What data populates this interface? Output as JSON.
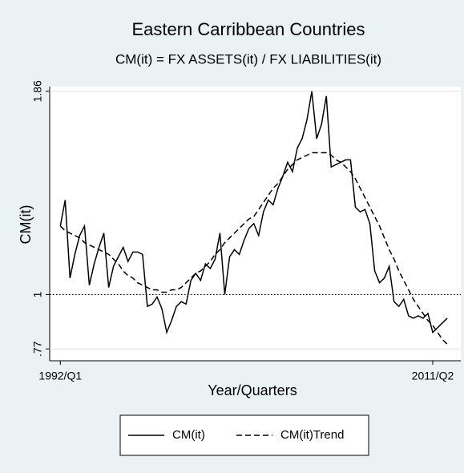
{
  "chart_data": {
    "type": "line",
    "title": "Eastern Carribbean Countries",
    "subtitle": "CM(it) = FX ASSETS(it) / FX LIABILITIES(it)",
    "x_label": "Year/Quarters",
    "y_label": "CM(it)",
    "x": [
      1992,
      1992.25,
      1992.5,
      1992.75,
      1993,
      1993.25,
      1993.5,
      1993.75,
      1994,
      1994.25,
      1994.5,
      1994.75,
      1995,
      1995.25,
      1995.5,
      1995.75,
      1996,
      1996.25,
      1996.5,
      1996.75,
      1997,
      1997.25,
      1997.5,
      1997.75,
      1998,
      1998.25,
      1998.5,
      1998.75,
      1999,
      1999.25,
      1999.5,
      1999.75,
      2000,
      2000.25,
      2000.5,
      2000.75,
      2001,
      2001.25,
      2001.5,
      2001.75,
      2002,
      2002.25,
      2002.5,
      2002.75,
      2003,
      2003.25,
      2003.5,
      2003.75,
      2004,
      2004.25,
      2004.5,
      2004.75,
      2005,
      2005.25,
      2005.5,
      2005.75,
      2006,
      2006.25,
      2006.5,
      2006.75,
      2007,
      2007.25,
      2007.5,
      2007.75,
      2008,
      2008.25,
      2008.5,
      2008.75,
      2009,
      2009.25,
      2009.5,
      2009.75,
      2010,
      2010.25,
      2010.5,
      2010.75,
      2011,
      2011.25,
      2011.5,
      2011.75,
      2012
    ],
    "series": [
      {
        "name": "CM(it)",
        "color": "#000000",
        "dash": "solid",
        "values": [
          1.29,
          1.4,
          1.07,
          1.17,
          1.25,
          1.29,
          1.04,
          1.13,
          1.2,
          1.26,
          1.03,
          1.12,
          1.16,
          1.2,
          1.14,
          1.18,
          1.18,
          1.17,
          0.95,
          0.96,
          0.99,
          0.94,
          0.84,
          0.89,
          0.95,
          0.97,
          0.96,
          1.06,
          1.09,
          1.06,
          1.13,
          1.11,
          1.15,
          1.26,
          1.0,
          1.16,
          1.19,
          1.17,
          1.23,
          1.28,
          1.3,
          1.25,
          1.35,
          1.4,
          1.38,
          1.45,
          1.5,
          1.56,
          1.52,
          1.62,
          1.66,
          1.74,
          1.86,
          1.66,
          1.72,
          1.84,
          1.54,
          1.55,
          1.56,
          1.57,
          1.57,
          1.37,
          1.35,
          1.36,
          1.3,
          1.1,
          1.05,
          1.07,
          1.12,
          0.97,
          0.95,
          0.98,
          0.91,
          0.9,
          0.91,
          0.9,
          0.92,
          0.84,
          0.86,
          0.88,
          0.9
        ]
      },
      {
        "name": "CM(it)Trend",
        "color": "#000000",
        "dash": "dashed",
        "values": [
          1.29,
          1.27,
          1.26,
          1.25,
          1.24,
          1.22,
          1.21,
          1.2,
          1.19,
          1.18,
          1.17,
          1.15,
          1.13,
          1.1,
          1.08,
          1.07,
          1.05,
          1.04,
          1.03,
          1.02,
          1.02,
          1.01,
          1.01,
          1.02,
          1.02,
          1.03,
          1.05,
          1.07,
          1.09,
          1.1,
          1.12,
          1.14,
          1.17,
          1.19,
          1.22,
          1.24,
          1.26,
          1.28,
          1.3,
          1.32,
          1.33,
          1.36,
          1.39,
          1.42,
          1.45,
          1.47,
          1.5,
          1.53,
          1.55,
          1.57,
          1.58,
          1.59,
          1.6,
          1.6,
          1.6,
          1.6,
          1.59,
          1.57,
          1.56,
          1.54,
          1.52,
          1.49,
          1.45,
          1.41,
          1.37,
          1.33,
          1.29,
          1.24,
          1.19,
          1.15,
          1.1,
          1.06,
          1.02,
          0.98,
          0.95,
          0.92,
          0.89,
          0.87,
          0.84,
          0.81,
          0.79
        ]
      }
    ],
    "xlim": [
      1991.45,
      2012.7
    ],
    "xticks": [
      {
        "value": 1992,
        "label": "1992/Q1"
      },
      {
        "value": 2011.25,
        "label": "2011/Q2"
      }
    ],
    "ylim": [
      0.72,
      1.88
    ],
    "yticks": [
      {
        "value": 0.77,
        "label": ".77"
      },
      1,
      1.86
    ],
    "reference_line": 1,
    "grid": true,
    "legend": "bottom"
  }
}
